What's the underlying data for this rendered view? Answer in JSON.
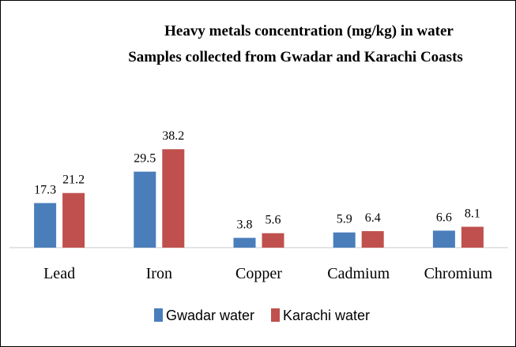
{
  "chart_data": {
    "type": "bar",
    "title": "Heavy metals concentration (mg/kg) in water",
    "subtitle": "Samples collected from Gwadar and Karachi Coasts",
    "categories": [
      "Lead",
      "Iron",
      "Copper",
      "Cadmium",
      "Chromium"
    ],
    "series": [
      {
        "name": "Gwadar water",
        "color": "#4a7ebb",
        "values": [
          17.3,
          29.5,
          3.8,
          5.9,
          6.6
        ]
      },
      {
        "name": "Karachi water",
        "color": "#c0504d",
        "values": [
          21.2,
          38.2,
          5.6,
          6.4,
          8.1
        ]
      }
    ],
    "ylim": [
      0,
      45
    ],
    "grid": false,
    "legend": "bottom",
    "xlabel": "",
    "ylabel": ""
  }
}
